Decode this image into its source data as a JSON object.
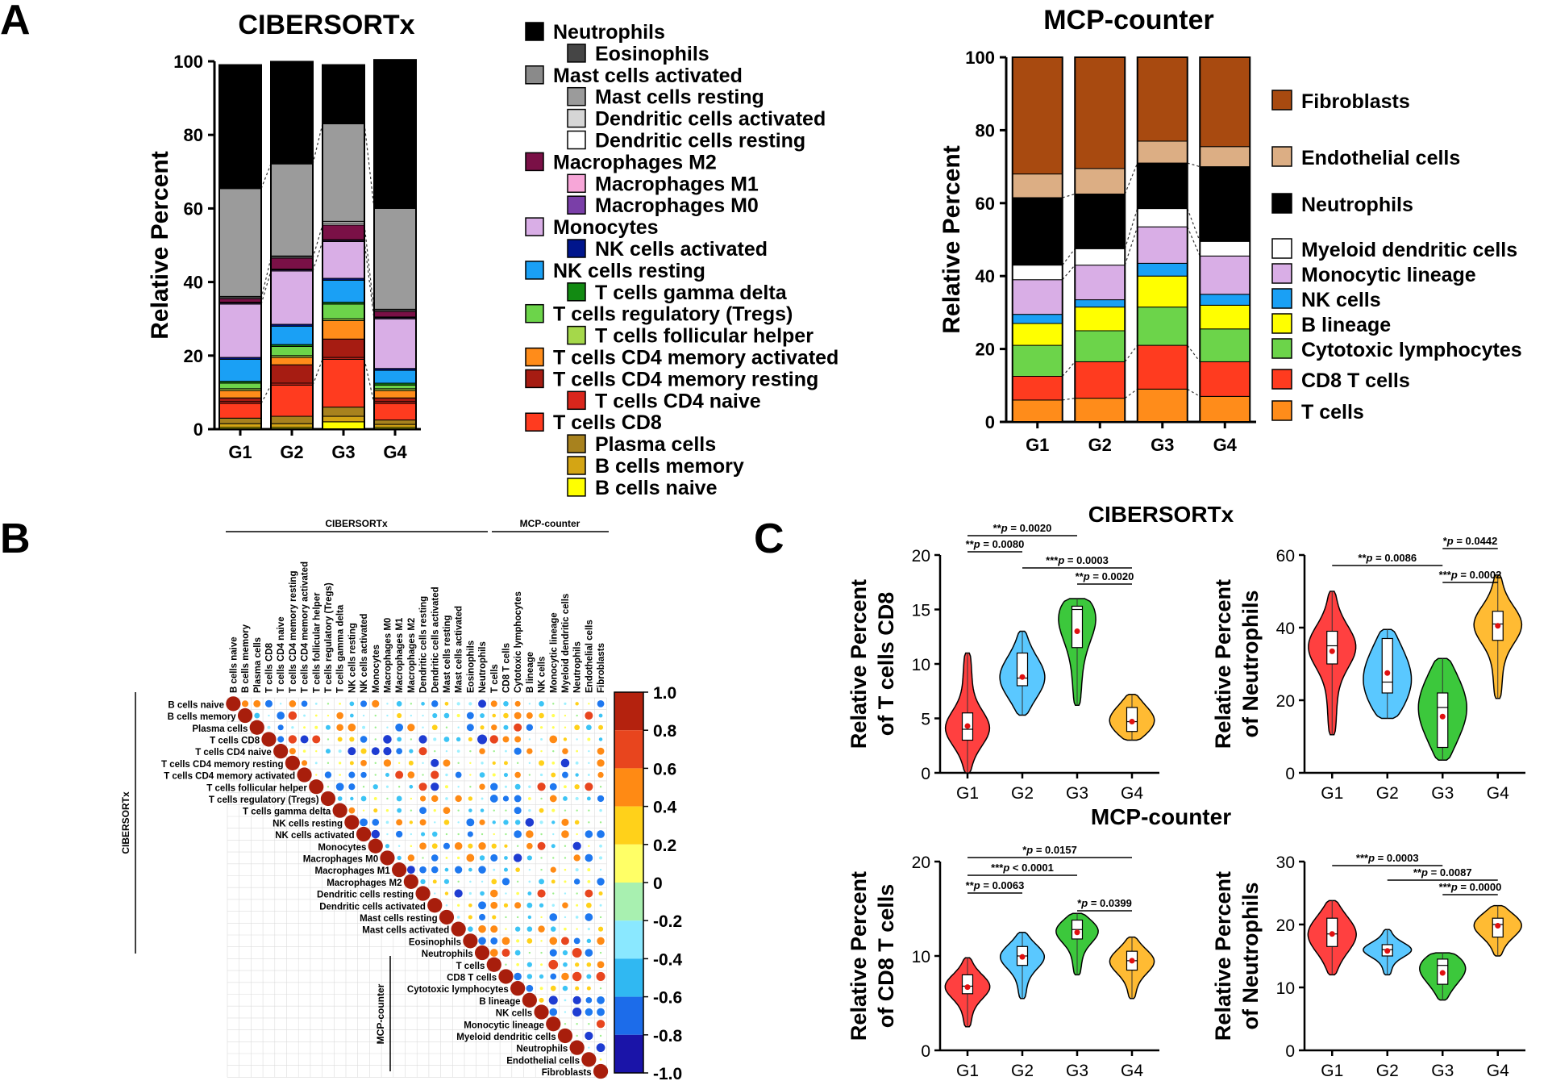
{
  "panel_labels": {
    "a": "A",
    "b": "B",
    "c": "C"
  },
  "chart_data": [
    {
      "id": "cibersort_stacked",
      "type": "bar",
      "stacked": true,
      "title": "CIBERSORTx",
      "ylabel": "Relative Percent",
      "ylim": [
        0,
        100
      ],
      "yticks": [
        "0",
        "20",
        "40",
        "60",
        "80",
        "100"
      ],
      "categories": [
        "G1",
        "G2",
        "G3",
        "G4"
      ],
      "legend_title": "",
      "series": [
        {
          "name": "B cells naive",
          "color": "#ffff00",
          "values": [
            0.5,
            0.5,
            2.0,
            0.5
          ]
        },
        {
          "name": "B cells memory",
          "color": "#d4a514",
          "values": [
            1.0,
            1.0,
            1.5,
            0.8
          ]
        },
        {
          "name": "Plasma cells",
          "color": "#a8821e",
          "values": [
            1.5,
            2.0,
            2.5,
            1.2
          ]
        },
        {
          "name": "T cells CD8",
          "color": "#ff3b1f",
          "values": [
            4.0,
            8.5,
            13.0,
            4.5
          ]
        },
        {
          "name": "T cells CD4 naive",
          "color": "#d9261c",
          "values": [
            0.5,
            0.5,
            0.5,
            0.5
          ]
        },
        {
          "name": "T cells CD4 memory resting",
          "color": "#a61c12",
          "values": [
            1.0,
            5.0,
            5.0,
            1.0
          ]
        },
        {
          "name": "T cells CD4 memory activated",
          "color": "#ff8c1a",
          "values": [
            2.0,
            2.0,
            5.0,
            2.0
          ]
        },
        {
          "name": "T cells follicular helper",
          "color": "#a5d84a",
          "values": [
            0.5,
            0.5,
            0.5,
            0.5
          ]
        },
        {
          "name": "T cells regulatory (Tregs)",
          "color": "#6cd44a",
          "values": [
            1.5,
            2.5,
            4.0,
            1.0
          ]
        },
        {
          "name": "T cells gamma delta",
          "color": "#128a12",
          "values": [
            0.5,
            0.5,
            0.5,
            0.5
          ]
        },
        {
          "name": "NK cells resting",
          "color": "#1aa0f5",
          "values": [
            6.0,
            5.0,
            6.0,
            3.5
          ]
        },
        {
          "name": "NK cells activated",
          "color": "#00158c",
          "values": [
            0.5,
            0.5,
            0.5,
            0.5
          ]
        },
        {
          "name": "Monocytes",
          "color": "#d9aee6",
          "values": [
            14.5,
            14.5,
            10.0,
            13.5
          ]
        },
        {
          "name": "Macrophages M0",
          "color": "#7a3fa8",
          "values": [
            0.3,
            0.3,
            0.3,
            0.3
          ]
        },
        {
          "name": "Macrophages M1",
          "color": "#f7a6d8",
          "values": [
            0.2,
            0.2,
            0.2,
            0.2
          ]
        },
        {
          "name": "Macrophages M2",
          "color": "#7a1046",
          "values": [
            1.0,
            3.0,
            4.0,
            1.5
          ]
        },
        {
          "name": "Dendritic cells resting",
          "color": "#ffffff",
          "values": [
            0.3,
            0.3,
            0.5,
            0.3
          ]
        },
        {
          "name": "Dendritic cells activated",
          "color": "#d6d6d6",
          "values": [
            0.3,
            0.3,
            0.5,
            0.3
          ]
        },
        {
          "name": "Mast cells resting",
          "color": "#9b9b9b",
          "values": [
            29.3,
            25.0,
            26.5,
            27.4
          ]
        },
        {
          "name": "Mast cells activated",
          "color": "#8a8a8a",
          "values": [
            0.0,
            0.0,
            0.0,
            0.0
          ]
        },
        {
          "name": "Eosinophils",
          "color": "#454545",
          "values": [
            0.0,
            0.0,
            0.0,
            0.0
          ]
        },
        {
          "name": "Neutrophils",
          "color": "#000000",
          "values": [
            33.6,
            27.8,
            16.0,
            40.4
          ]
        }
      ],
      "legend": [
        {
          "label": "Neutrophils",
          "color": "#000000",
          "indent": false
        },
        {
          "label": "Eosinophils",
          "color": "#454545",
          "indent": true
        },
        {
          "label": "Mast cells activated",
          "color": "#8a8a8a",
          "indent": false
        },
        {
          "label": "Mast cells resting",
          "color": "#9b9b9b",
          "indent": true
        },
        {
          "label": "Dendritic cells activated",
          "color": "#d6d6d6",
          "indent": true
        },
        {
          "label": "Dendritic cells resting",
          "color": "#ffffff",
          "indent": true
        },
        {
          "label": "Macrophages M2",
          "color": "#7a1046",
          "indent": false
        },
        {
          "label": "Macrophages M1",
          "color": "#f7a6d8",
          "indent": true
        },
        {
          "label": "Macrophages M0",
          "color": "#7a3fa8",
          "indent": true
        },
        {
          "label": "Monocytes",
          "color": "#d9aee6",
          "indent": false
        },
        {
          "label": "NK cells activated",
          "color": "#00158c",
          "indent": true
        },
        {
          "label": "NK cells resting",
          "color": "#1aa0f5",
          "indent": false
        },
        {
          "label": "T cells gamma delta",
          "color": "#128a12",
          "indent": true
        },
        {
          "label": "T cells regulatory (Tregs)",
          "color": "#6cd44a",
          "indent": false
        },
        {
          "label": "T cells follicular helper",
          "color": "#a5d84a",
          "indent": true
        },
        {
          "label": "T cells CD4 memory activated",
          "color": "#ff8c1a",
          "indent": false
        },
        {
          "label": "T cells CD4 memory resting",
          "color": "#a61c12",
          "indent": false
        },
        {
          "label": "T cells CD4 naive",
          "color": "#d9261c",
          "indent": true
        },
        {
          "label": "T cells CD8",
          "color": "#ff3b1f",
          "indent": false
        },
        {
          "label": "Plasma cells",
          "color": "#a8821e",
          "indent": true
        },
        {
          "label": "B cells memory",
          "color": "#d4a514",
          "indent": true
        },
        {
          "label": "B cells naive",
          "color": "#ffff00",
          "indent": true
        }
      ]
    },
    {
      "id": "mcp_stacked",
      "type": "bar",
      "stacked": true,
      "title": "MCP-counter",
      "ylabel": "Relative Percent",
      "ylim": [
        0,
        100
      ],
      "yticks": [
        "0",
        "20",
        "40",
        "60",
        "80",
        "100"
      ],
      "categories": [
        "G1",
        "G2",
        "G3",
        "G4"
      ],
      "series": [
        {
          "name": "T cells",
          "color": "#ff8c1a",
          "values": [
            6.0,
            6.5,
            9.0,
            7.0
          ]
        },
        {
          "name": "CD8 T cells",
          "color": "#ff3b1f",
          "values": [
            6.5,
            10.0,
            12.0,
            9.5
          ]
        },
        {
          "name": "Cytotoxic lymphocytes",
          "color": "#6cd44a",
          "values": [
            8.5,
            8.5,
            10.5,
            9.0
          ]
        },
        {
          "name": "B lineage",
          "color": "#ffff00",
          "values": [
            6.0,
            6.5,
            8.5,
            6.5
          ]
        },
        {
          "name": "NK cells",
          "color": "#1aa0f5",
          "values": [
            2.5,
            2.0,
            3.5,
            3.0
          ]
        },
        {
          "name": "Monocytic lineage",
          "color": "#d9aee6",
          "values": [
            9.5,
            9.5,
            10.0,
            10.5
          ]
        },
        {
          "name": "Myeloid dendritic cells",
          "color": "#ffffff",
          "values": [
            4.0,
            4.5,
            5.0,
            4.0
          ]
        },
        {
          "name": "Neutrophils",
          "color": "#000000",
          "values": [
            18.5,
            15.0,
            12.5,
            20.5
          ]
        },
        {
          "name": "Endothelial cells",
          "color": "#dcae84",
          "values": [
            6.5,
            7.0,
            6.0,
            5.5
          ]
        },
        {
          "name": "Fibroblasts",
          "color": "#a84a10",
          "values": [
            32.0,
            30.5,
            23.0,
            24.5
          ]
        }
      ],
      "legend": [
        {
          "label": "Fibroblasts",
          "color": "#a84a10"
        },
        {
          "label": "Endothelial cells",
          "color": "#dcae84"
        },
        {
          "label": "Neutrophils",
          "color": "#000000"
        },
        {
          "label": "Myeloid dendritic cells",
          "color": "#ffffff"
        },
        {
          "label": "Monocytic lineage",
          "color": "#d9aee6"
        },
        {
          "label": "NK cells",
          "color": "#1aa0f5"
        },
        {
          "label": "B lineage",
          "color": "#ffff00"
        },
        {
          "label": "Cytotoxic lymphocytes",
          "color": "#6cd44a"
        },
        {
          "label": "CD8 T cells",
          "color": "#ff3b1f"
        },
        {
          "label": "T cells",
          "color": "#ff8c1a"
        }
      ]
    },
    {
      "id": "correlation_matrix",
      "type": "heatmap",
      "group_labels": {
        "cibersort": "CIBERSORTx",
        "mcp": "MCP-counter"
      },
      "variables": [
        "B cells naive",
        "B cells memory",
        "Plasma cells",
        "T cells CD8",
        "T cells CD4 naive",
        "T cells CD4 memory resting",
        "T cells CD4 memory activated",
        "T cells follicular helper",
        "T cells regulatory (Tregs)",
        "T cells gamma delta",
        "NK cells resting",
        "NK cells activated",
        "Monocytes",
        "Macrophages M0",
        "Macrophages M1",
        "Macrophages M2",
        "Dendritic cells resting",
        "Dendritic cells activated",
        "Mast cells resting",
        "Mast cells activated",
        "Eosinophils",
        "Neutrophils",
        "T cells",
        "CD8 T cells",
        "Cytotoxic lymphocytes",
        "B lineage",
        "NK cells",
        "Monocytic lineage",
        "Myeloid dendritic cells",
        "Neutrophils",
        "Endothelial cells",
        "Fibroblasts"
      ],
      "colorbar_ticks": [
        "1.0",
        "0.8",
        "0.6",
        "0.4",
        "0.2",
        "0",
        "-0.2",
        "-0.4",
        "-0.6",
        "-0.8",
        "-1.0"
      ],
      "colorbar_colors": [
        "#b4220e",
        "#e8451e",
        "#ff8a14",
        "#ffd11a",
        "#ffff55",
        "#9ef08e",
        "#9ef0ff",
        "#3cc4f5",
        "#1e78f0",
        "#1e3cd2",
        "#1a1296"
      ],
      "range": [
        -1.0,
        1.0
      ]
    },
    {
      "id": "violin_cibersort_cd8",
      "type": "violin",
      "section_title": "CIBERSORTx",
      "ylabel": [
        "Relative Percent",
        "of T cells CD8"
      ],
      "ylim": [
        0,
        20
      ],
      "yticks": [
        "0",
        "5",
        "10",
        "15",
        "20"
      ],
      "categories": [
        "G1",
        "G2",
        "G3",
        "G4"
      ],
      "colors": [
        "#ff4040",
        "#5ac8ff",
        "#3cc83c",
        "#ffbb33"
      ],
      "stats": [
        {
          "min": 0,
          "q1": 3,
          "median": 4,
          "q3": 5.5,
          "max": 11,
          "mean": 4.3
        },
        {
          "min": 5.3,
          "q1": 8,
          "median": 8.7,
          "q3": 11,
          "max": 13,
          "mean": 8.8
        },
        {
          "min": 6.2,
          "q1": 11.5,
          "median": 15,
          "q3": 15.3,
          "max": 16,
          "mean": 13
        },
        {
          "min": 3,
          "q1": 3.8,
          "median": 4.7,
          "q3": 6,
          "max": 7.2,
          "mean": 4.7
        }
      ],
      "brackets": [
        {
          "g1": 0,
          "g2": 2,
          "stars": "**",
          "p": " = 0.0020"
        },
        {
          "g1": 0,
          "g2": 1,
          "stars": "**",
          "p": " = 0.0080"
        },
        {
          "g1": 1,
          "g2": 3,
          "stars": "***",
          "p": " = 0.0003"
        },
        {
          "g1": 2,
          "g2": 3,
          "stars": "**",
          "p": " = 0.0020"
        }
      ]
    },
    {
      "id": "violin_cibersort_neutro",
      "type": "violin",
      "ylabel": [
        "Relative Percent",
        "of Neutrophils"
      ],
      "ylim": [
        0,
        60
      ],
      "yticks": [
        "0",
        "20",
        "40",
        "60"
      ],
      "categories": [
        "G1",
        "G2",
        "G3",
        "G4"
      ],
      "colors": [
        "#ff4040",
        "#5ac8ff",
        "#3cc83c",
        "#ffbb33"
      ],
      "stats": [
        {
          "min": 10.5,
          "q1": 30,
          "median": 35,
          "q3": 39,
          "max": 50,
          "mean": 33.5
        },
        {
          "min": 15,
          "q1": 22,
          "median": 25,
          "q3": 37,
          "max": 39.5,
          "mean": 27.5
        },
        {
          "min": 3.5,
          "q1": 7,
          "median": 18,
          "q3": 22,
          "max": 31.5,
          "mean": 15.5
        },
        {
          "min": 20.5,
          "q1": 36.5,
          "median": 41,
          "q3": 44.5,
          "max": 54.5,
          "mean": 40.5
        }
      ],
      "brackets": [
        {
          "g1": 2,
          "g2": 3,
          "stars": "*",
          "p": " = 0.0442"
        },
        {
          "g1": 0,
          "g2": 2,
          "stars": "**",
          "p": " = 0.0086"
        },
        {
          "g1": 2,
          "g2": 3,
          "stars": "***",
          "p": " = 0.0002"
        }
      ]
    },
    {
      "id": "violin_mcp_cd8",
      "type": "violin",
      "section_title": "MCP-counter",
      "ylabel": [
        "Relative Percent",
        "of CD8 T cells"
      ],
      "ylim": [
        0,
        20
      ],
      "yticks": [
        "0",
        "10",
        "20"
      ],
      "categories": [
        "G1",
        "G2",
        "G3",
        "G4"
      ],
      "colors": [
        "#ff4040",
        "#5ac8ff",
        "#3cc83c",
        "#ffbb33"
      ],
      "stats": [
        {
          "min": 2.5,
          "q1": 6,
          "median": 6.8,
          "q3": 8,
          "max": 9.8,
          "mean": 6.7
        },
        {
          "min": 5.5,
          "q1": 9,
          "median": 10,
          "q3": 11,
          "max": 12.5,
          "mean": 9.9
        },
        {
          "min": 8,
          "q1": 11.8,
          "median": 12.8,
          "q3": 13.8,
          "max": 14.5,
          "mean": 12.5
        },
        {
          "min": 5.5,
          "q1": 8.5,
          "median": 9.5,
          "q3": 10.5,
          "max": 12,
          "mean": 9.5
        }
      ],
      "brackets": [
        {
          "g1": 0,
          "g2": 3,
          "stars": "*",
          "p": " = 0.0157"
        },
        {
          "g1": 0,
          "g2": 2,
          "stars": "***",
          "p": " < 0.0001"
        },
        {
          "g1": 0,
          "g2": 1,
          "stars": "**",
          "p": " = 0.0063"
        },
        {
          "g1": 2,
          "g2": 3,
          "stars": "*",
          "p": " = 0.0399"
        }
      ]
    },
    {
      "id": "violin_mcp_neutro",
      "type": "violin",
      "ylabel": [
        "Relative Percent",
        "of Neutrophils"
      ],
      "ylim": [
        0,
        30
      ],
      "yticks": [
        "0",
        "10",
        "20",
        "30"
      ],
      "categories": [
        "G1",
        "G2",
        "G3",
        "G4"
      ],
      "colors": [
        "#ff4040",
        "#5ac8ff",
        "#3cc83c",
        "#ffbb33"
      ],
      "stats": [
        {
          "min": 12,
          "q1": 16.5,
          "median": 18.5,
          "q3": 21,
          "max": 23.8,
          "mean": 18.5
        },
        {
          "min": 12,
          "q1": 15,
          "median": 16,
          "q3": 16.8,
          "max": 19.2,
          "mean": 15.8
        },
        {
          "min": 8,
          "q1": 10.5,
          "median": 13.5,
          "q3": 14.5,
          "max": 15.5,
          "mean": 12.3
        },
        {
          "min": 15,
          "q1": 18,
          "median": 20,
          "q3": 21,
          "max": 23,
          "mean": 19.8
        }
      ],
      "brackets": [
        {
          "g1": 0,
          "g2": 2,
          "stars": "***",
          "p": " = 0.0003"
        },
        {
          "g1": 1,
          "g2": 3,
          "stars": "**",
          "p": " = 0.0087"
        },
        {
          "g1": 2,
          "g2": 3,
          "stars": "***",
          "p": " = 0.0000"
        }
      ]
    }
  ]
}
